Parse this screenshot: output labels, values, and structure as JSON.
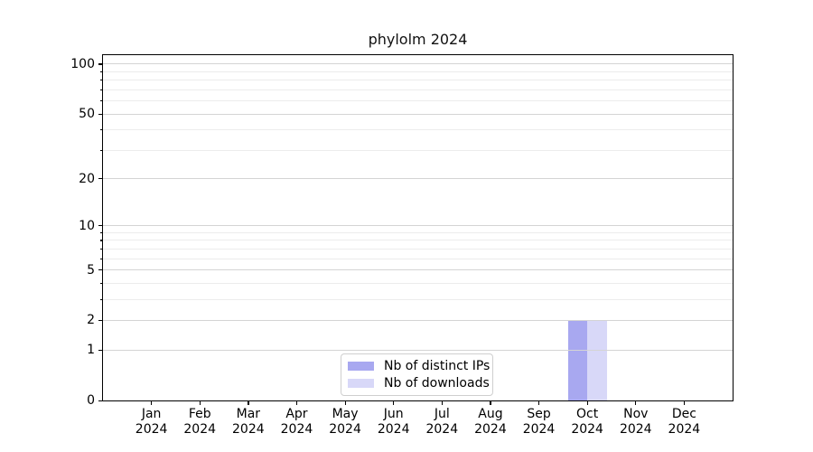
{
  "chart_data": {
    "type": "bar",
    "title": "phylolm 2024",
    "categories": [
      "Jan 2024",
      "Feb 2024",
      "Mar 2024",
      "Apr 2024",
      "May 2024",
      "Jun 2024",
      "Jul 2024",
      "Aug 2024",
      "Sep 2024",
      "Oct 2024",
      "Nov 2024",
      "Dec 2024"
    ],
    "series": [
      {
        "name": "Nb of distinct IPs",
        "color": "#a8a8f0",
        "values": [
          0,
          0,
          0,
          0,
          0,
          0,
          0,
          0,
          0,
          2,
          0,
          0
        ]
      },
      {
        "name": "Nb of downloads",
        "color": "#d8d8f8",
        "values": [
          0,
          0,
          0,
          0,
          0,
          0,
          0,
          0,
          0,
          2,
          0,
          0
        ]
      }
    ],
    "xlabel": "",
    "ylabel": "",
    "y_axis": {
      "scale": "log1p",
      "major_ticks": [
        0,
        1,
        2,
        5,
        10,
        20,
        50,
        100
      ],
      "minor_ticks": [
        3,
        4,
        6,
        7,
        8,
        9,
        30,
        40,
        60,
        70,
        80,
        90
      ],
      "range": [
        0,
        113
      ]
    },
    "grid": "both",
    "legend": {
      "position": "lower center"
    }
  },
  "colors": {
    "distinct_ips_bar": "#a8a8f0",
    "downloads_bar": "#d8d8f8",
    "grid_major": "#d4d4d4",
    "grid_minor": "#ececec"
  }
}
